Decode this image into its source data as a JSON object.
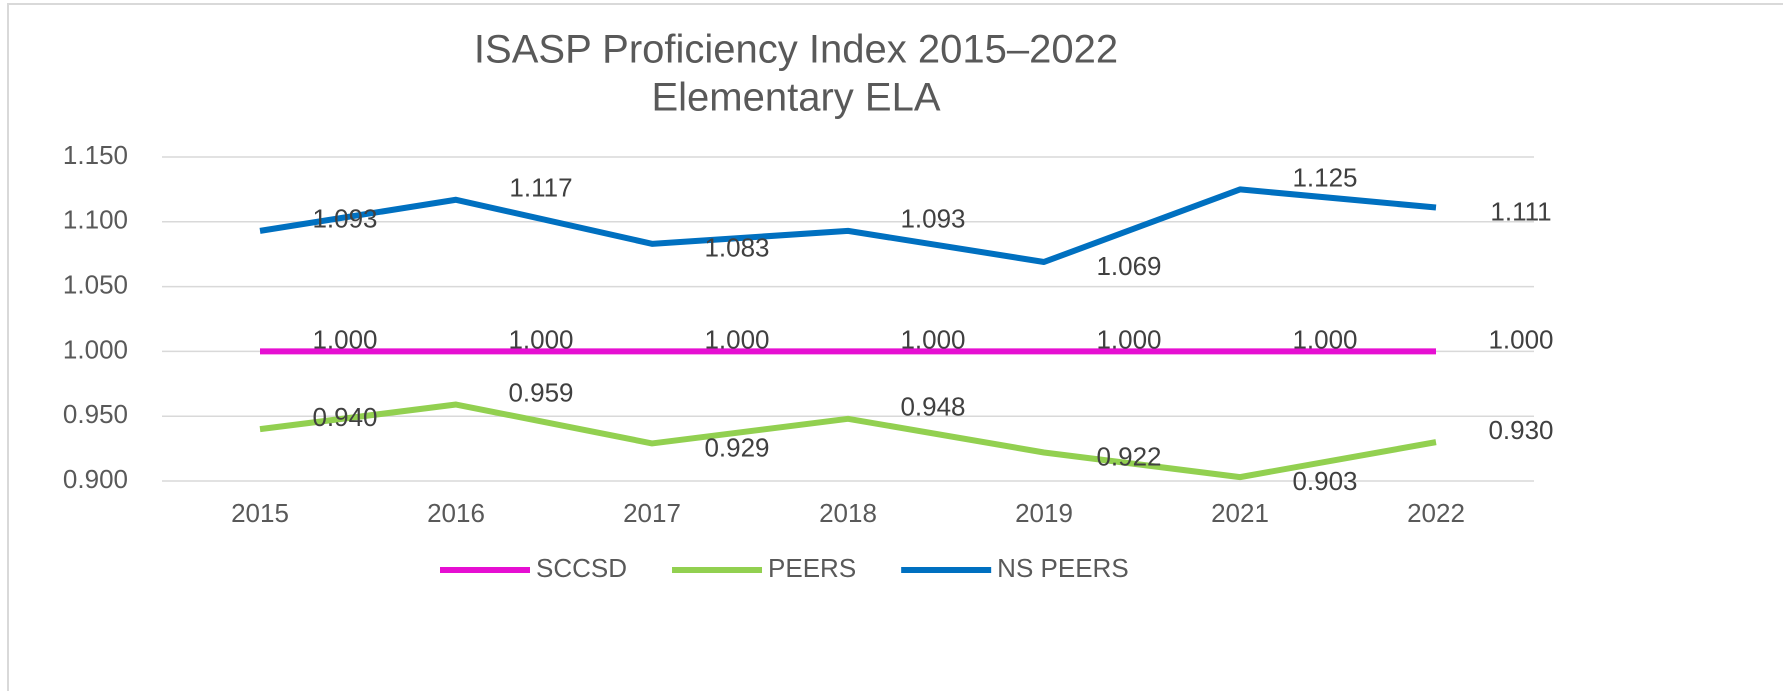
{
  "chart_data": {
    "type": "line",
    "title": [
      "ISASP Proficiency Index 2015–2022",
      "Elementary ELA"
    ],
    "categories": [
      "2015",
      "2016",
      "2017",
      "2018",
      "2019",
      "2021",
      "2022"
    ],
    "series": [
      {
        "name": "SCCSD",
        "color": "#e60fd2",
        "values": [
          1,
          1,
          1,
          1,
          1,
          1,
          1
        ],
        "value_labels": [
          "1.000",
          "1.000",
          "1.000",
          "1.000",
          "1.000",
          "1.000",
          "1.000"
        ]
      },
      {
        "name": "PEERS",
        "color": "#92d050",
        "values": [
          0.94,
          0.959,
          0.929,
          0.948,
          0.922,
          0.903,
          0.93
        ],
        "value_labels": [
          "0.940",
          "0.959",
          "0.929",
          "0.948",
          "0.922",
          "0.903",
          "0.930"
        ]
      },
      {
        "name": "NS PEERS",
        "color": "#0070c0",
        "values": [
          1.093,
          1.117,
          1.083,
          1.093,
          1.069,
          1.125,
          1.111
        ],
        "value_labels": [
          "1.093",
          "1.117",
          "1.083",
          "1.093",
          "1.069",
          "1.125",
          "1.111"
        ]
      }
    ],
    "ylim": [
      0.9,
      1.15
    ],
    "yticks": [
      {
        "value": 0.9,
        "label": "0.900"
      },
      {
        "value": 0.95,
        "label": "0.950"
      },
      {
        "value": 1,
        "label": "1.000"
      },
      {
        "value": 1.05,
        "label": "1.050"
      },
      {
        "value": 1.1,
        "label": "1.100"
      },
      {
        "value": 1.15,
        "label": "1.150"
      }
    ],
    "grid": true,
    "legend": "bottom"
  }
}
